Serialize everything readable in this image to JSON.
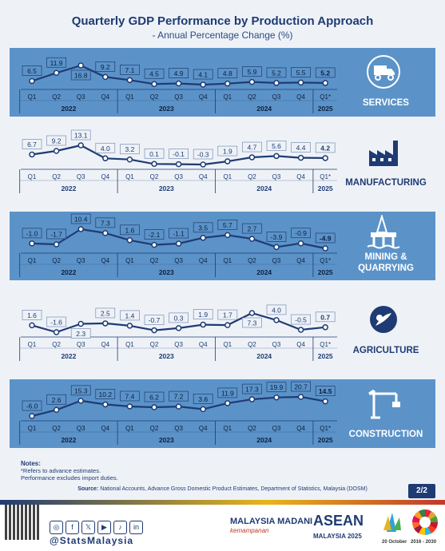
{
  "title": "Quarterly GDP Performance by Production Approach",
  "subtitle": "- Annual Percentage Change (%)",
  "quarter_labels": [
    "Q1",
    "Q2",
    "Q3",
    "Q4",
    "Q1",
    "Q2",
    "Q3",
    "Q4",
    "Q1",
    "Q2",
    "Q3",
    "Q4",
    "Q1*"
  ],
  "years": [
    {
      "label": "2022",
      "span": [
        0,
        3
      ]
    },
    {
      "label": "2023",
      "span": [
        4,
        7
      ]
    },
    {
      "label": "2024",
      "span": [
        8,
        11
      ]
    },
    {
      "label": "2025",
      "span": [
        12,
        12
      ]
    }
  ],
  "chart_data": [
    {
      "type": "line",
      "sector": "SERVICES",
      "icon": "delivery-truck-icon",
      "values": [
        "6.5",
        "11.9",
        "16.8",
        "9.2",
        "7.1",
        "4.5",
        "4.9",
        "4.1",
        "4.8",
        "5.9",
        "5.2",
        "5.5",
        "5.2"
      ],
      "label_pos": [
        "a",
        "a",
        "b",
        "a",
        "a",
        "a",
        "a",
        "a",
        "a",
        "a",
        "a",
        "a",
        "a"
      ]
    },
    {
      "type": "line",
      "sector": "MANUFACTURING",
      "icon": "factory-icon",
      "values": [
        "6.7",
        "9.2",
        "13.1",
        "4.0",
        "3.2",
        "0.1",
        "-0.1",
        "-0.3",
        "1.9",
        "4.7",
        "5.6",
        "4.4",
        "4.2"
      ],
      "label_pos": [
        "a",
        "a",
        "a",
        "a",
        "a",
        "a",
        "a",
        "a",
        "a",
        "a",
        "a",
        "a",
        "a"
      ]
    },
    {
      "type": "line",
      "sector": "MINING & QUARRYING",
      "icon": "oil-rig-icon",
      "values": [
        "-1.0",
        "-1.7",
        "10.4",
        "7.3",
        "1.6",
        "-2.1",
        "-1.1",
        "3.5",
        "5.7",
        "2.7",
        "-3.9",
        "-0.9",
        "-4.9"
      ],
      "label_pos": [
        "a",
        "a",
        "a",
        "a",
        "a",
        "a",
        "a",
        "a",
        "a",
        "a",
        "a",
        "a",
        "a"
      ]
    },
    {
      "type": "line",
      "sector": "AGRICULTURE",
      "icon": "palm-leaf-icon",
      "values": [
        "1.6",
        "-1.6",
        "2.3",
        "2.5",
        "1.4",
        "-0.7",
        "0.3",
        "1.9",
        "1.7",
        "7.3",
        "4.0",
        "-0.5",
        "0.7"
      ],
      "label_pos": [
        "a",
        "a",
        "b",
        "a",
        "a",
        "a",
        "a",
        "a",
        "a",
        "b",
        "a",
        "a",
        "a"
      ]
    },
    {
      "type": "line",
      "sector": "CONSTRUCTION",
      "icon": "crane-icon",
      "values": [
        "-6.0",
        "2.6",
        "15.3",
        "10.2",
        "7.4",
        "6.2",
        "7.2",
        "3.6",
        "11.9",
        "17.3",
        "19.9",
        "20.7",
        "14.5"
      ],
      "label_pos": [
        "a",
        "a",
        "a",
        "a",
        "a",
        "a",
        "a",
        "a",
        "a",
        "a",
        "a",
        "a",
        "a"
      ]
    }
  ],
  "notes": {
    "heading": "Notes:",
    "lines": [
      "*Refers to advance estimates.",
      "Performance excludes import duties."
    ]
  },
  "source": {
    "label": "Source:",
    "text": " National Accounts, Advance Gross Domestic Product Estimates, Department of Statistics, Malaysia (DOSM)"
  },
  "page_number": "2/2",
  "footer": {
    "handle": "@StatsMalaysia",
    "logos": {
      "madani": "MALAYSIA MADANI",
      "madani_sub": "kemampanan",
      "asean": "ASEAN",
      "asean_sub": "MALAYSIA 2025",
      "date": "20 October",
      "sdg_years": "2016 - 2030"
    }
  }
}
